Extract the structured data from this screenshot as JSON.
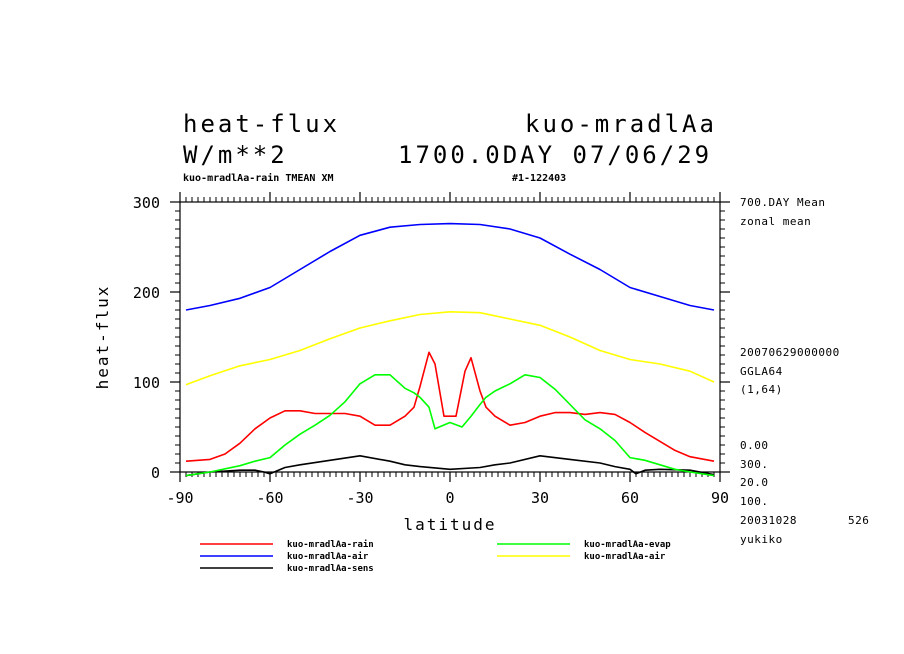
{
  "header": {
    "var_name": "heat-flux",
    "exp_name": "kuo-mradlAa",
    "units": "W/m**2",
    "time_info": "1700.0DAY 07/06/29",
    "subtitle_left": "kuo-mradlAa-rain TMEAN XM",
    "subtitle_right": "#1-122403"
  },
  "side_info": {
    "l1": "700.DAY Mean",
    "l2": "zonal mean",
    "l3": "20070629000000",
    "l4": "GGLA64",
    "l5": "(1,64)",
    "l6": "0.00",
    "l7": "300.",
    "l8": "20.0",
    "l9": "100.",
    "l10": "20031028",
    "l10b": "526",
    "l11": "yukiko"
  },
  "chart_data": {
    "type": "line",
    "xlabel": "latitude",
    "ylabel": "heat-flux",
    "xlim": [
      -90,
      90
    ],
    "ylim": [
      0,
      300
    ],
    "xticks": [
      -90,
      -60,
      -30,
      0,
      30,
      60,
      90
    ],
    "xtick_labels": [
      "-90",
      "-60",
      "-30",
      "0",
      "30",
      "60",
      "90"
    ],
    "yticks": [
      0,
      100,
      200,
      300
    ],
    "ytick_labels": [
      "0",
      "100",
      "200",
      "300"
    ],
    "series": [
      {
        "name": "kuo-mradlAa-rain",
        "color": "#ff0000",
        "x": [
          -88,
          -80,
          -75,
          -70,
          -65,
          -60,
          -55,
          -50,
          -45,
          -40,
          -35,
          -30,
          -25,
          -20,
          -15,
          -12,
          -10,
          -7,
          -5,
          -2,
          2,
          5,
          7,
          10,
          12,
          15,
          20,
          25,
          30,
          35,
          40,
          45,
          50,
          55,
          60,
          65,
          70,
          75,
          80,
          88
        ],
        "y": [
          12,
          14,
          20,
          32,
          48,
          60,
          68,
          68,
          65,
          65,
          65,
          62,
          52,
          52,
          62,
          72,
          95,
          133,
          120,
          62,
          62,
          112,
          127,
          90,
          72,
          62,
          52,
          55,
          62,
          66,
          66,
          64,
          66,
          64,
          55,
          44,
          34,
          24,
          17,
          12
        ]
      },
      {
        "name": "kuo-mradlAa-air",
        "color": "#0000ff",
        "x": [
          -88,
          -80,
          -70,
          -60,
          -50,
          -40,
          -30,
          -20,
          -10,
          0,
          10,
          20,
          30,
          40,
          50,
          60,
          70,
          80,
          88
        ],
        "y": [
          180,
          185,
          193,
          205,
          225,
          245,
          263,
          272,
          275,
          276,
          275,
          270,
          260,
          242,
          225,
          205,
          195,
          185,
          180
        ]
      },
      {
        "name": "kuo-mradlAa-sens",
        "color": "#000000",
        "x": [
          -88,
          -80,
          -70,
          -65,
          -62,
          -60,
          -55,
          -50,
          -40,
          -30,
          -20,
          -15,
          -10,
          0,
          10,
          15,
          20,
          30,
          40,
          50,
          55,
          60,
          62,
          65,
          70,
          80,
          88
        ],
        "y": [
          -4,
          0,
          2,
          2,
          0,
          -2,
          5,
          8,
          13,
          18,
          12,
          8,
          6,
          3,
          5,
          8,
          10,
          18,
          14,
          10,
          6,
          3,
          -2,
          2,
          3,
          2,
          -3
        ]
      },
      {
        "name": "kuo-mradlAa-evap",
        "color": "#00ff00",
        "x": [
          -88,
          -80,
          -70,
          -65,
          -60,
          -55,
          -50,
          -45,
          -40,
          -35,
          -30,
          -25,
          -20,
          -15,
          -12,
          -10,
          -7,
          -5,
          0,
          4,
          7,
          10,
          12,
          15,
          20,
          25,
          30,
          35,
          40,
          45,
          50,
          55,
          60,
          65,
          70,
          75,
          80,
          88
        ],
        "y": [
          -4,
          0,
          7,
          12,
          16,
          30,
          42,
          52,
          63,
          78,
          98,
          108,
          108,
          93,
          88,
          83,
          72,
          48,
          55,
          50,
          62,
          75,
          83,
          90,
          98,
          108,
          105,
          92,
          75,
          58,
          48,
          35,
          16,
          13,
          8,
          3,
          0,
          -4
        ]
      },
      {
        "name": "kuo-mradlAa-air",
        "color": "#ffff00",
        "x": [
          -88,
          -80,
          -70,
          -60,
          -50,
          -40,
          -30,
          -20,
          -10,
          0,
          10,
          20,
          30,
          40,
          50,
          60,
          70,
          80,
          88
        ],
        "y": [
          97,
          107,
          118,
          125,
          135,
          148,
          160,
          168,
          175,
          178,
          177,
          170,
          163,
          150,
          135,
          125,
          120,
          112,
          100
        ]
      }
    ]
  },
  "legend": [
    {
      "label": "kuo-mradlAa-rain",
      "color": "#ff0000"
    },
    {
      "label": "kuo-mradlAa-air",
      "color": "#0000ff"
    },
    {
      "label": "kuo-mradlAa-sens",
      "color": "#000000"
    },
    {
      "label": "kuo-mradlAa-evap",
      "color": "#00ff00"
    },
    {
      "label": "kuo-mradlAa-air",
      "color": "#ffff00"
    }
  ]
}
